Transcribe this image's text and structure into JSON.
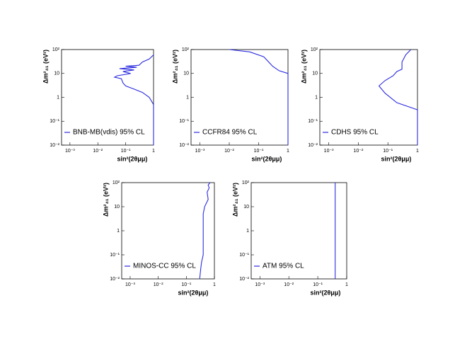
{
  "chart_data": [
    {
      "type": "line",
      "x_label": "sin²(2θμμ)",
      "y_label": "Δm²₄₁ (eV²)",
      "log_x": true,
      "log_y": true,
      "legend": "lower left",
      "xlim": [
        0.0005,
        1
      ],
      "ylim": [
        0.01,
        100
      ],
      "xticks": [
        {
          "value": 0.001,
          "label": "10⁻³"
        },
        {
          "value": 0.01,
          "label": "10⁻²"
        },
        {
          "value": 0.1,
          "label": "10⁻¹"
        },
        1
      ],
      "yticks": [
        {
          "value": 0.01,
          "label": "10⁻²"
        },
        {
          "value": 0.1,
          "label": "10⁻¹"
        },
        1,
        10,
        {
          "value": 100,
          "label": "10²"
        }
      ],
      "x": [
        1,
        0.7,
        0.4,
        0.3,
        0.1,
        0.25,
        0.06,
        0.2,
        0.08,
        0.15,
        0.05,
        0.04,
        0.07,
        0.08,
        0.1,
        0.2,
        0.4,
        0.7,
        1,
        1
      ],
      "series": [
        {
          "name": "BNB-MB(vdis) 95% CL",
          "color": "#2a2ae0",
          "values": [
            60,
            40,
            30,
            22,
            20,
            18,
            16,
            14,
            12,
            10,
            8,
            7,
            6,
            4,
            3,
            2.2,
            1.6,
            1,
            0.5,
            0.01
          ]
        }
      ]
    },
    {
      "type": "line",
      "x_label": "sin²(2θμμ)",
      "y_label": "Δm²₄₁ (eV²)",
      "log_x": true,
      "log_y": true,
      "legend": "lower left",
      "xlim": [
        0.0005,
        1
      ],
      "ylim": [
        0.01,
        100
      ],
      "xticks": [
        {
          "value": 0.001,
          "label": "10⁻³"
        },
        {
          "value": 0.01,
          "label": "10⁻²"
        },
        {
          "value": 0.1,
          "label": "10⁻¹"
        },
        1
      ],
      "yticks": [
        {
          "value": 0.01,
          "label": "10⁻²"
        },
        {
          "value": 0.1,
          "label": "10⁻¹"
        },
        1,
        10,
        {
          "value": 100,
          "label": "10²"
        }
      ],
      "x": [
        0.01,
        0.05,
        0.15,
        0.3,
        0.5,
        1,
        1
      ],
      "series": [
        {
          "name": "CCFR84 95% CL",
          "color": "#2a2ae0",
          "values": [
            100,
            80,
            50,
            20,
            13,
            10,
            0.01
          ]
        }
      ]
    },
    {
      "type": "line",
      "x_label": "sin²(2θμμ)",
      "y_label": "Δm²₄₁ (eV²)",
      "log_x": true,
      "log_y": true,
      "legend": "lower left",
      "xlim": [
        0.0005,
        1
      ],
      "ylim": [
        0.01,
        100
      ],
      "xticks": [
        {
          "value": 0.001,
          "label": "10⁻³"
        },
        {
          "value": 0.01,
          "label": "10⁻²"
        },
        {
          "value": 0.1,
          "label": "10⁻¹"
        },
        1
      ],
      "yticks": [
        {
          "value": 0.01,
          "label": "10⁻²"
        },
        {
          "value": 0.1,
          "label": "10⁻¹"
        },
        1,
        10,
        {
          "value": 100,
          "label": "10²"
        }
      ],
      "x": [
        0.6,
        0.4,
        0.3,
        0.3,
        0.2,
        0.15,
        0.08,
        0.05,
        0.08,
        0.2,
        1,
        1
      ],
      "series": [
        {
          "name": "CDHS 95% CL",
          "color": "#2a2ae0",
          "values": [
            100,
            60,
            30,
            15,
            12,
            8,
            5,
            3,
            1.5,
            0.6,
            0.3,
            0.01
          ]
        }
      ]
    },
    {
      "type": "line",
      "x_label": "sin²(2θμμ)",
      "y_label": "Δm²₄₁ (eV²)",
      "log_x": true,
      "log_y": true,
      "legend": "lower left",
      "xlim": [
        0.0005,
        1
      ],
      "ylim": [
        0.01,
        100
      ],
      "xticks": [
        {
          "value": 0.001,
          "label": "10⁻³"
        },
        {
          "value": 0.01,
          "label": "10⁻²"
        },
        {
          "value": 0.1,
          "label": "10⁻¹"
        },
        1
      ],
      "yticks": [
        {
          "value": 0.01,
          "label": "10⁻²"
        },
        {
          "value": 0.1,
          "label": "10⁻¹"
        },
        1,
        10,
        {
          "value": 100,
          "label": "10²"
        }
      ],
      "x": [
        0.7,
        0.6,
        0.65,
        0.55,
        0.6,
        0.45,
        0.4,
        0.4,
        0.4,
        0.35,
        0.33,
        0.3
      ],
      "series": [
        {
          "name": "MINOS-CC 95% CL",
          "color": "#2a2ae0",
          "values": [
            100,
            80,
            60,
            40,
            20,
            10,
            5,
            1,
            0.1,
            0.05,
            0.03,
            0.01
          ]
        }
      ]
    },
    {
      "type": "line",
      "x_label": "sin²(2θμμ)",
      "y_label": "Δm²₄₁ (eV²)",
      "log_x": true,
      "log_y": true,
      "legend": "lower left",
      "xlim": [
        0.0005,
        1
      ],
      "ylim": [
        0.01,
        100
      ],
      "xticks": [
        {
          "value": 0.001,
          "label": "10⁻³"
        },
        {
          "value": 0.01,
          "label": "10⁻²"
        },
        {
          "value": 0.1,
          "label": "10⁻¹"
        },
        1
      ],
      "yticks": [
        {
          "value": 0.01,
          "label": "10⁻²"
        },
        {
          "value": 0.1,
          "label": "10⁻¹"
        },
        1,
        10,
        {
          "value": 100,
          "label": "10²"
        }
      ],
      "x": [
        0.4,
        0.4
      ],
      "series": [
        {
          "name": "ATM 95% CL",
          "color": "#2a2ae0",
          "values": [
            100,
            0.01
          ]
        }
      ]
    }
  ]
}
